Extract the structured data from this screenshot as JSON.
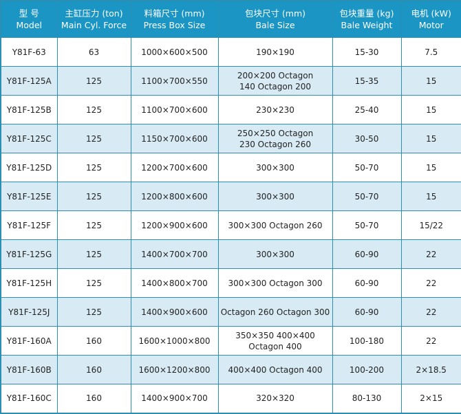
{
  "headers": [
    {
      "zh": "型 号",
      "en": "Model"
    },
    {
      "zh": "主缸压力 (ton)",
      "en": "Main Cyl. Force"
    },
    {
      "zh": "料箱尺寸 (mm)",
      "en": "Press Box Size"
    },
    {
      "zh": "包块尺寸 (mm)",
      "en": "Bale Size"
    },
    {
      "zh": "包块重量 (kg)",
      "en": "Bale Weight"
    },
    {
      "zh": "电机 (kW)",
      "en": "Motor"
    }
  ],
  "rows": [
    {
      "model": "Y81F-63",
      "force": "63",
      "box": "1000×600×500",
      "bale": [
        "190×190"
      ],
      "weight": "15-30",
      "motor": "7.5"
    },
    {
      "model": "Y81F-125A",
      "force": "125",
      "box": "1100×700×550",
      "bale": [
        "200×200 Octagon",
        "140 Octagon 200"
      ],
      "weight": "15-35",
      "motor": "15"
    },
    {
      "model": "Y81F-125B",
      "force": "125",
      "box": "1100×700×600",
      "bale": [
        "230×230"
      ],
      "weight": "25-40",
      "motor": "15"
    },
    {
      "model": "Y81F-125C",
      "force": "125",
      "box": "1150×700×600",
      "bale": [
        "250×250 Octagon",
        "230 Octagon 260"
      ],
      "weight": "30-50",
      "motor": "15"
    },
    {
      "model": "Y81F-125D",
      "force": "125",
      "box": "1200×700×600",
      "bale": [
        "300×300"
      ],
      "weight": "50-70",
      "motor": "15"
    },
    {
      "model": "Y81F-125E",
      "force": "125",
      "box": "1200×800×600",
      "bale": [
        "300×300"
      ],
      "weight": "50-70",
      "motor": "15"
    },
    {
      "model": "Y81F-125F",
      "force": "125",
      "box": "1200×900×600",
      "bale": [
        "300×300 Octagon 260"
      ],
      "weight": "50-70",
      "motor": "15/22"
    },
    {
      "model": "Y81F-125G",
      "force": "125",
      "box": "1400×700×700",
      "bale": [
        "300×300"
      ],
      "weight": "60-90",
      "motor": "22"
    },
    {
      "model": "Y81F-125H",
      "force": "125",
      "box": "1400×800×700",
      "bale": [
        "300×300 Octagon 300"
      ],
      "weight": "60-90",
      "motor": "22"
    },
    {
      "model": "Y81F-125J",
      "force": "125",
      "box": "1400×900×600",
      "bale": [
        "Octagon 260 Octagon 300"
      ],
      "weight": "60-90",
      "motor": "22"
    },
    {
      "model": "Y81F-160A",
      "force": "160",
      "box": "1600×1000×800",
      "bale": [
        "350×350  400×400",
        "Octagon 400"
      ],
      "weight": "100-180",
      "motor": "22"
    },
    {
      "model": "Y81F-160B",
      "force": "160",
      "box": "1600×1200×800",
      "bale": [
        "400×400 Octagon 400"
      ],
      "weight": "100-200",
      "motor": "2×18.5"
    },
    {
      "model": "Y81F-160C",
      "force": "160",
      "box": "1400×900×700",
      "bale": [
        "320×320"
      ],
      "weight": "80-130",
      "motor": "2×15"
    }
  ]
}
